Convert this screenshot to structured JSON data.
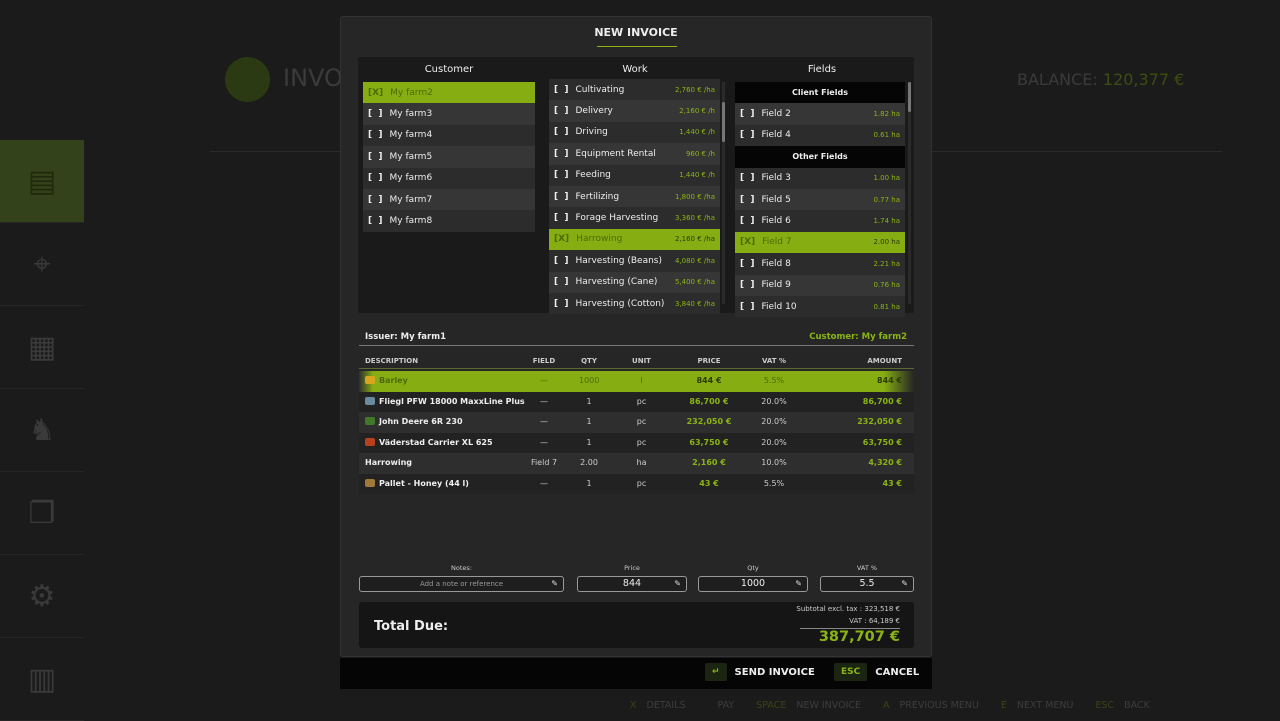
{
  "background": {
    "title": "INVO",
    "balance_label": "BALANCE:",
    "balance_value": "120,377 €",
    "sidebar": [
      {
        "icon": "invoice-icon",
        "glyph": "▤"
      },
      {
        "icon": "map-icon",
        "glyph": "⌖"
      },
      {
        "icon": "calendar-icon",
        "glyph": "▦"
      },
      {
        "icon": "cow-icon",
        "glyph": "♞"
      },
      {
        "icon": "documents-icon",
        "glyph": "❐"
      },
      {
        "icon": "production-icon",
        "glyph": "⚙"
      },
      {
        "icon": "statistics-icon",
        "glyph": "▥"
      }
    ]
  },
  "modal": {
    "title": "NEW INVOICE"
  },
  "customer": {
    "header": "Customer",
    "items": [
      {
        "check": "[X]",
        "label": "My farm2",
        "selected": true
      },
      {
        "check": "[  ]",
        "label": "My farm3"
      },
      {
        "check": "[  ]",
        "label": "My farm4"
      },
      {
        "check": "[  ]",
        "label": "My farm5"
      },
      {
        "check": "[  ]",
        "label": "My farm6"
      },
      {
        "check": "[  ]",
        "label": "My farm7"
      },
      {
        "check": "[  ]",
        "label": "My farm8"
      }
    ]
  },
  "work": {
    "header": "Work",
    "items": [
      {
        "check": "[  ]",
        "label": "Cultivating",
        "value": "2,760 € /ha"
      },
      {
        "check": "[  ]",
        "label": "Delivery",
        "value": "2,160 € /h"
      },
      {
        "check": "[  ]",
        "label": "Driving",
        "value": "1,440 € /h"
      },
      {
        "check": "[  ]",
        "label": "Equipment Rental",
        "value": "960 € /h"
      },
      {
        "check": "[  ]",
        "label": "Feeding",
        "value": "1,440 € /h"
      },
      {
        "check": "[  ]",
        "label": "Fertilizing",
        "value": "1,800 € /ha"
      },
      {
        "check": "[  ]",
        "label": "Forage Harvesting",
        "value": "3,360 € /ha"
      },
      {
        "check": "[X]",
        "label": "Harrowing",
        "value": "2,160 € /ha",
        "selected": true
      },
      {
        "check": "[  ]",
        "label": "Harvesting (Beans)",
        "value": "4,080 € /ha"
      },
      {
        "check": "[  ]",
        "label": "Harvesting (Cane)",
        "value": "5,400 € /ha"
      },
      {
        "check": "[  ]",
        "label": "Harvesting (Cotton)",
        "value": "3,840 € /ha"
      }
    ]
  },
  "fields": {
    "header": "Fields",
    "items": [
      {
        "header": "Client Fields"
      },
      {
        "check": "[  ]",
        "label": "Field 2",
        "value": "1.82 ha"
      },
      {
        "check": "[  ]",
        "label": "Field 4",
        "value": "0.61 ha"
      },
      {
        "header": "Other Fields"
      },
      {
        "check": "[  ]",
        "label": "Field 3",
        "value": "1.00 ha"
      },
      {
        "check": "[  ]",
        "label": "Field 5",
        "value": "0.77 ha"
      },
      {
        "check": "[  ]",
        "label": "Field 6",
        "value": "1.74 ha"
      },
      {
        "check": "[X]",
        "label": "Field 7",
        "value": "2.00 ha",
        "selected": true
      },
      {
        "check": "[  ]",
        "label": "Field 8",
        "value": "2.21 ha"
      },
      {
        "check": "[  ]",
        "label": "Field 9",
        "value": "0.76 ha"
      },
      {
        "check": "[  ]",
        "label": "Field 10",
        "value": "0.81 ha"
      }
    ]
  },
  "invoice": {
    "issuer": "Issuer: My farm1",
    "customer": "Customer: My farm2",
    "columns": [
      "DESCRIPTION",
      "FIELD",
      "QTY",
      "UNIT",
      "PRICE",
      "VAT %",
      "AMOUNT"
    ],
    "rows": [
      {
        "icon": "barley-icon",
        "icon_color": "#d9a520",
        "cells": [
          "Barley",
          "—",
          "1000",
          "l",
          "844 €",
          "5.5%",
          "844 €"
        ],
        "selected": true
      },
      {
        "icon": "trailer-icon",
        "icon_color": "#6a8aa0",
        "cells": [
          "Fliegl PFW 18000 MaxxLine Plus",
          "—",
          "1",
          "pc",
          "86,700 €",
          "20.0%",
          "86,700 €"
        ]
      },
      {
        "icon": "tractor-icon",
        "icon_color": "#3f7a2a",
        "cells": [
          "John Deere 6R 230",
          "—",
          "1",
          "pc",
          "232,050 €",
          "20.0%",
          "232,050 €"
        ]
      },
      {
        "icon": "cultivator-icon",
        "icon_color": "#b8401c",
        "cells": [
          "Väderstad Carrier XL 625",
          "—",
          "1",
          "pc",
          "63,750 €",
          "20.0%",
          "63,750 €"
        ]
      },
      {
        "icon": "",
        "cells": [
          "Harrowing",
          "Field 7",
          "2.00",
          "ha",
          "2,160 €",
          "10.0%",
          "4,320 €"
        ]
      },
      {
        "icon": "pallet-icon",
        "icon_color": "#a0783a",
        "cells": [
          "Pallet - Honey (44 l)",
          "—",
          "1",
          "pc",
          "43 €",
          "5.5%",
          "43 €"
        ]
      }
    ]
  },
  "form": {
    "notes_label": "Notes:",
    "notes_placeholder": "Add a note or reference",
    "price_label": "Price",
    "price_value": "844",
    "qty_label": "Qty",
    "qty_value": "1000",
    "vat_label": "VAT %",
    "vat_value": "5.5"
  },
  "totals": {
    "label": "Total Due:",
    "subtotal": "Subtotal excl. tax : 323,518 €",
    "vat": "VAT : 64,189 €",
    "total": "387,707 €"
  },
  "actions": {
    "send_key": "↵",
    "send_label": "SEND INVOICE",
    "cancel_key": "ESC",
    "cancel_label": "CANCEL"
  },
  "footer": [
    {
      "key": "X",
      "label": "DETAILS"
    },
    {
      "key": "",
      "label": "PAY"
    },
    {
      "key": "SPACE",
      "label": "NEW INVOICE"
    },
    {
      "key": "A",
      "label": "PREVIOUS MENU"
    },
    {
      "key": "E",
      "label": "NEXT MENU"
    },
    {
      "key": "ESC",
      "label": "BACK"
    }
  ],
  "colors": {
    "accent": "#8ab414",
    "background": "#1b1b1b",
    "modal": "#262626"
  }
}
